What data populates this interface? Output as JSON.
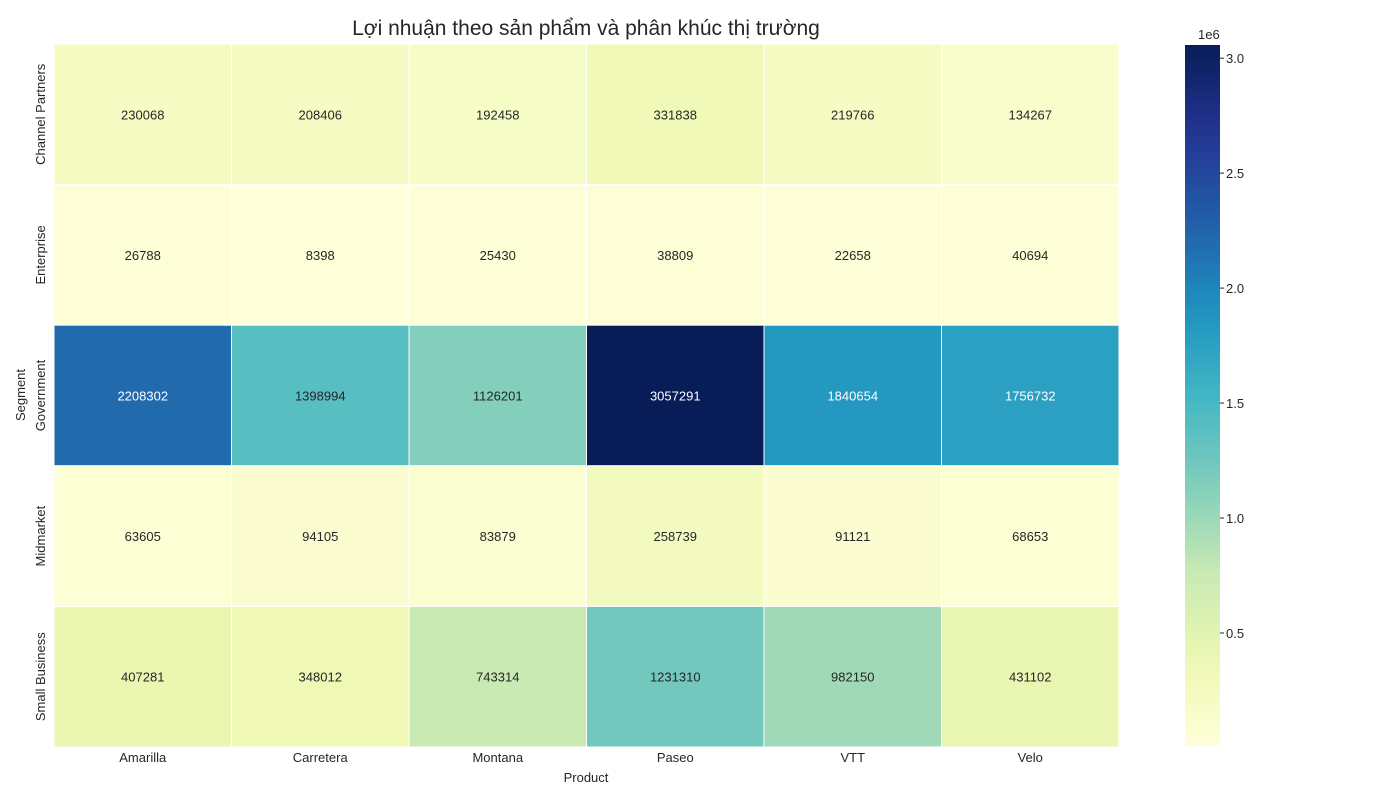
{
  "chart_data": {
    "type": "heatmap",
    "title": "Lợi nhuận theo sản phẩm và phân khúc thị trường",
    "xlabel": "Product",
    "ylabel": "Segment",
    "x_categories": [
      "Amarilla",
      "Carretera",
      "Montana",
      "Paseo",
      "VTT",
      "Velo"
    ],
    "y_categories": [
      "Channel Partners",
      "Enterprise",
      "Government",
      "Midmarket",
      "Small Business"
    ],
    "values": [
      [
        230068,
        208406,
        192458,
        331838,
        219766,
        134267
      ],
      [
        26788,
        8398,
        25430,
        38809,
        22658,
        40694
      ],
      [
        2208302,
        1398994,
        1126201,
        3057291,
        1840654,
        1756732
      ],
      [
        63605,
        94105,
        83879,
        258739,
        91121,
        68653
      ],
      [
        407281,
        348012,
        743314,
        1231310,
        982150,
        431102
      ]
    ],
    "colormap": "YlGnBu",
    "colorbar": {
      "min": 8398,
      "max": 3057291,
      "ticks": [
        0.5,
        1.0,
        1.5,
        2.0,
        2.5,
        3.0
      ],
      "tick_labels": [
        "0.5",
        "1.0",
        "1.5",
        "2.0",
        "2.5",
        "3.0"
      ],
      "multiplier_label": "1e6",
      "scale": 1000000
    },
    "annotations": true,
    "grid": false
  }
}
